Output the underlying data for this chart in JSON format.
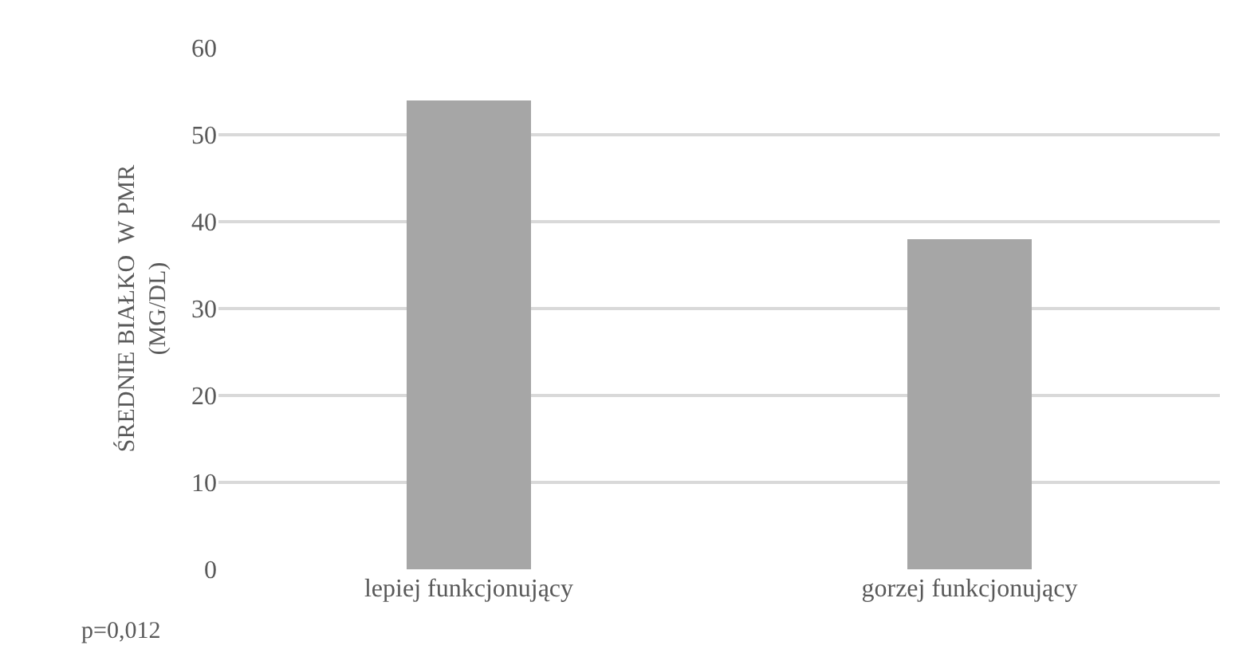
{
  "chart_data": {
    "type": "bar",
    "categories": [
      "lepiej funkcjonujący",
      "gorzej funkcjonujący"
    ],
    "values": [
      54,
      38
    ],
    "color": "#a6a6a6",
    "ylabel": "ŚREDNIE BIAŁKO  W PMR\n(MG/DL)",
    "ylim": [
      0,
      60
    ],
    "yticks": [
      0,
      10,
      20,
      30,
      40,
      50,
      60
    ],
    "grid": "y",
    "annotations": [
      "p=0,012"
    ]
  }
}
